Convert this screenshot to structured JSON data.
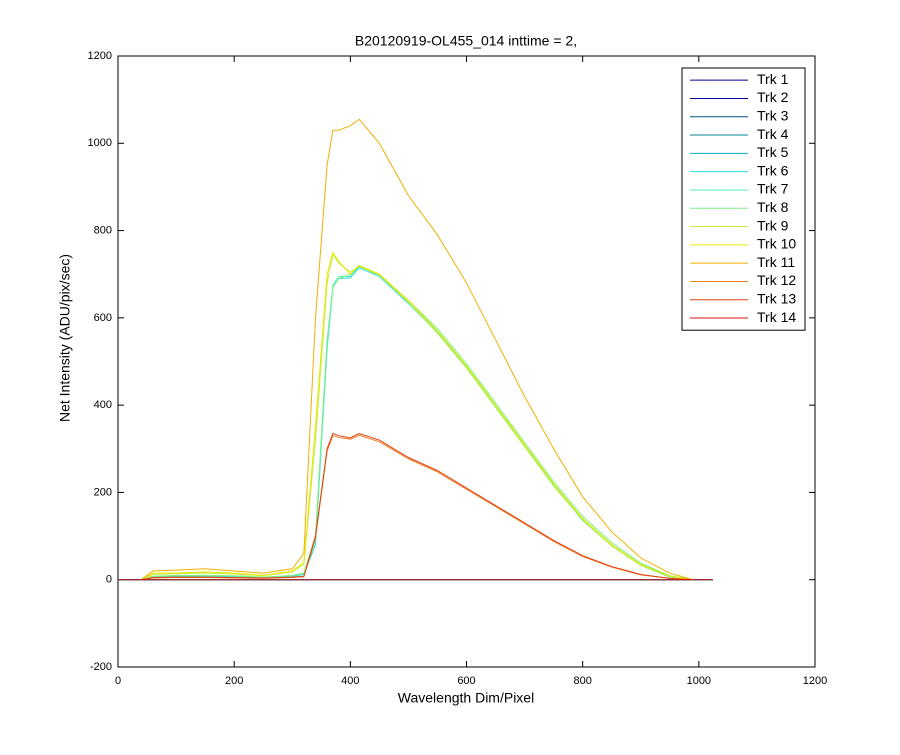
{
  "chart_data": {
    "type": "line",
    "title": "B20120919-OL455_014 inttime = 2,",
    "x_label": "Wavelength Dim/Pixel",
    "y_label": "Net Intensity (ADU/pix/sec)",
    "x": [
      0,
      40,
      60,
      100,
      150,
      200,
      250,
      300,
      320,
      340,
      360,
      370,
      380,
      400,
      415,
      450,
      500,
      550,
      600,
      650,
      700,
      750,
      800,
      850,
      900,
      950,
      990,
      1024
    ],
    "xlim": [
      0,
      1200
    ],
    "xticks": [
      0,
      200,
      400,
      600,
      800,
      1000,
      1200
    ],
    "ylim": [
      -200,
      1200
    ],
    "yticks": [
      -200,
      0,
      200,
      400,
      600,
      800,
      1000,
      1200
    ],
    "legend": "upper right",
    "series": [
      {
        "name": "Trk 1",
        "color": "#00008f",
        "values": [
          0,
          0,
          0,
          0,
          0,
          0,
          0,
          0,
          0,
          0,
          0,
          0,
          0,
          0,
          0,
          0,
          0,
          0,
          0,
          0,
          0,
          0,
          0,
          0,
          0,
          0,
          0,
          0
        ]
      },
      {
        "name": "Trk 2",
        "color": "#00009f",
        "values": [
          0,
          0,
          0,
          0,
          0,
          0,
          0,
          0,
          0,
          0,
          0,
          0,
          0,
          0,
          0,
          0,
          0,
          0,
          0,
          0,
          0,
          0,
          0,
          0,
          0,
          0,
          0,
          0
        ]
      },
      {
        "name": "Trk 3",
        "color": "#005080",
        "values": [
          0,
          0,
          0,
          0,
          0,
          0,
          0,
          0,
          0,
          0,
          0,
          0,
          0,
          0,
          0,
          0,
          0,
          0,
          0,
          0,
          0,
          0,
          0,
          0,
          0,
          0,
          0,
          0
        ]
      },
      {
        "name": "Trk 4",
        "color": "#008090",
        "values": [
          0,
          0,
          0,
          0,
          0,
          0,
          0,
          0,
          0,
          0,
          0,
          0,
          0,
          0,
          0,
          0,
          0,
          0,
          0,
          0,
          0,
          0,
          0,
          0,
          0,
          0,
          0,
          0
        ]
      },
      {
        "name": "Trk 5",
        "color": "#00b0c0",
        "values": [
          0,
          0,
          0,
          0,
          0,
          0,
          0,
          0,
          0,
          0,
          0,
          0,
          0,
          0,
          0,
          0,
          0,
          0,
          0,
          0,
          0,
          0,
          0,
          0,
          0,
          0,
          0,
          0
        ]
      },
      {
        "name": "Trk 6",
        "color": "#20e0e0",
        "values": [
          null,
          0,
          6,
          8,
          8,
          7,
          5,
          8,
          12,
          80,
          530,
          670,
          690,
          692,
          715,
          695,
          633,
          566,
          486,
          396,
          306,
          216,
          136,
          78,
          33,
          6,
          0,
          null
        ]
      },
      {
        "name": "Trk 7",
        "color": "#50f0c0",
        "values": [
          null,
          0,
          7,
          9,
          9,
          8,
          5,
          9,
          14,
          90,
          540,
          675,
          695,
          695,
          718,
          698,
          635,
          568,
          488,
          398,
          308,
          218,
          138,
          80,
          34,
          7,
          0,
          null
        ]
      },
      {
        "name": "Trk 8",
        "color": "#80f080",
        "values": [
          null,
          0,
          8,
          10,
          10,
          9,
          6,
          10,
          15,
          100,
          550,
          670,
          690,
          700,
          720,
          700,
          640,
          575,
          495,
          405,
          315,
          225,
          145,
          85,
          38,
          9,
          0,
          null
        ]
      },
      {
        "name": "Trk 9",
        "color": "#c0f040",
        "values": [
          null,
          0,
          12,
          14,
          15,
          13,
          9,
          18,
          35,
          320,
          680,
          745,
          725,
          705,
          718,
          698,
          636,
          565,
          485,
          395,
          305,
          215,
          137,
          78,
          33,
          7,
          0,
          null
        ]
      },
      {
        "name": "Trk 10",
        "color": "#e8e800",
        "values": [
          null,
          0,
          15,
          15,
          18,
          15,
          10,
          20,
          40,
          350,
          700,
          750,
          730,
          700,
          720,
          700,
          640,
          570,
          490,
          400,
          310,
          220,
          140,
          80,
          35,
          8,
          0,
          null
        ]
      },
      {
        "name": "Trk 11",
        "color": "#f0b000",
        "values": [
          null,
          0,
          20,
          22,
          25,
          20,
          15,
          25,
          60,
          600,
          950,
          1030,
          1030,
          1040,
          1055,
          1000,
          880,
          790,
          680,
          550,
          420,
          300,
          190,
          110,
          50,
          15,
          0,
          null
        ]
      },
      {
        "name": "Trk 12",
        "color": "#f08020",
        "values": [
          null,
          0,
          4,
          5,
          5,
          4,
          3,
          5,
          7,
          95,
          295,
          330,
          326,
          322,
          331,
          316,
          277,
          247,
          207,
          168,
          128,
          88,
          53,
          29,
          11,
          3,
          0,
          null
        ]
      },
      {
        "name": "Trk 13",
        "color": "#e04010",
        "values": [
          null,
          0,
          5,
          6,
          6,
          5,
          4,
          6,
          8,
          100,
          300,
          335,
          330,
          325,
          335,
          320,
          280,
          250,
          210,
          170,
          130,
          90,
          55,
          30,
          12,
          3,
          0,
          null
        ]
      },
      {
        "name": "Trk 14",
        "color": "#d01010",
        "values": [
          0,
          0,
          0,
          0,
          0,
          0,
          0,
          0,
          0,
          0,
          0,
          0,
          0,
          0,
          0,
          0,
          0,
          0,
          0,
          0,
          0,
          0,
          0,
          0,
          0,
          0,
          0,
          0
        ]
      }
    ]
  }
}
